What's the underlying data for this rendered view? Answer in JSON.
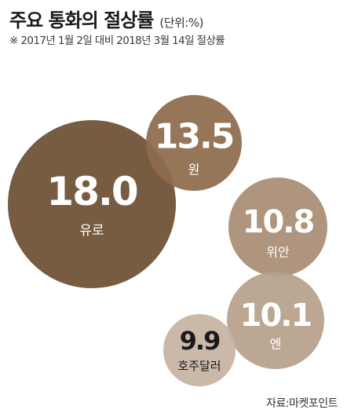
{
  "header": {
    "title": "주요 통화의 절상률",
    "unit": "(단위:%)",
    "subtitle": "※ 2017년 1월 2일 대비 2018년 3월 14일 절상률"
  },
  "source": "자료:마켓포인트",
  "colors": {
    "dark": "#6d5033",
    "medium": "#8e6c4c",
    "light": "#a98d73",
    "lighter": "#b7a08b",
    "pale": "#c6b3a2"
  },
  "chart_data": {
    "type": "bubble",
    "title": "주요 통화의 절상률",
    "unit": "%",
    "series": [
      {
        "name": "유로",
        "value": 18.0,
        "label": "18.0",
        "color": "#6d5033",
        "text_color": "#ffffff"
      },
      {
        "name": "원",
        "value": 13.5,
        "label": "13.5",
        "color": "#8e6c4c",
        "text_color": "#ffffff"
      },
      {
        "name": "위안",
        "value": 10.8,
        "label": "10.8",
        "color": "#a98d73",
        "text_color": "#ffffff"
      },
      {
        "name": "엔",
        "value": 10.1,
        "label": "10.1",
        "color": "#b7a08b",
        "text_color": "#ffffff"
      },
      {
        "name": "호주달러",
        "value": 9.9,
        "label": "9.9",
        "color": "#c6b3a2",
        "text_color": "#1a1a1a"
      }
    ]
  }
}
